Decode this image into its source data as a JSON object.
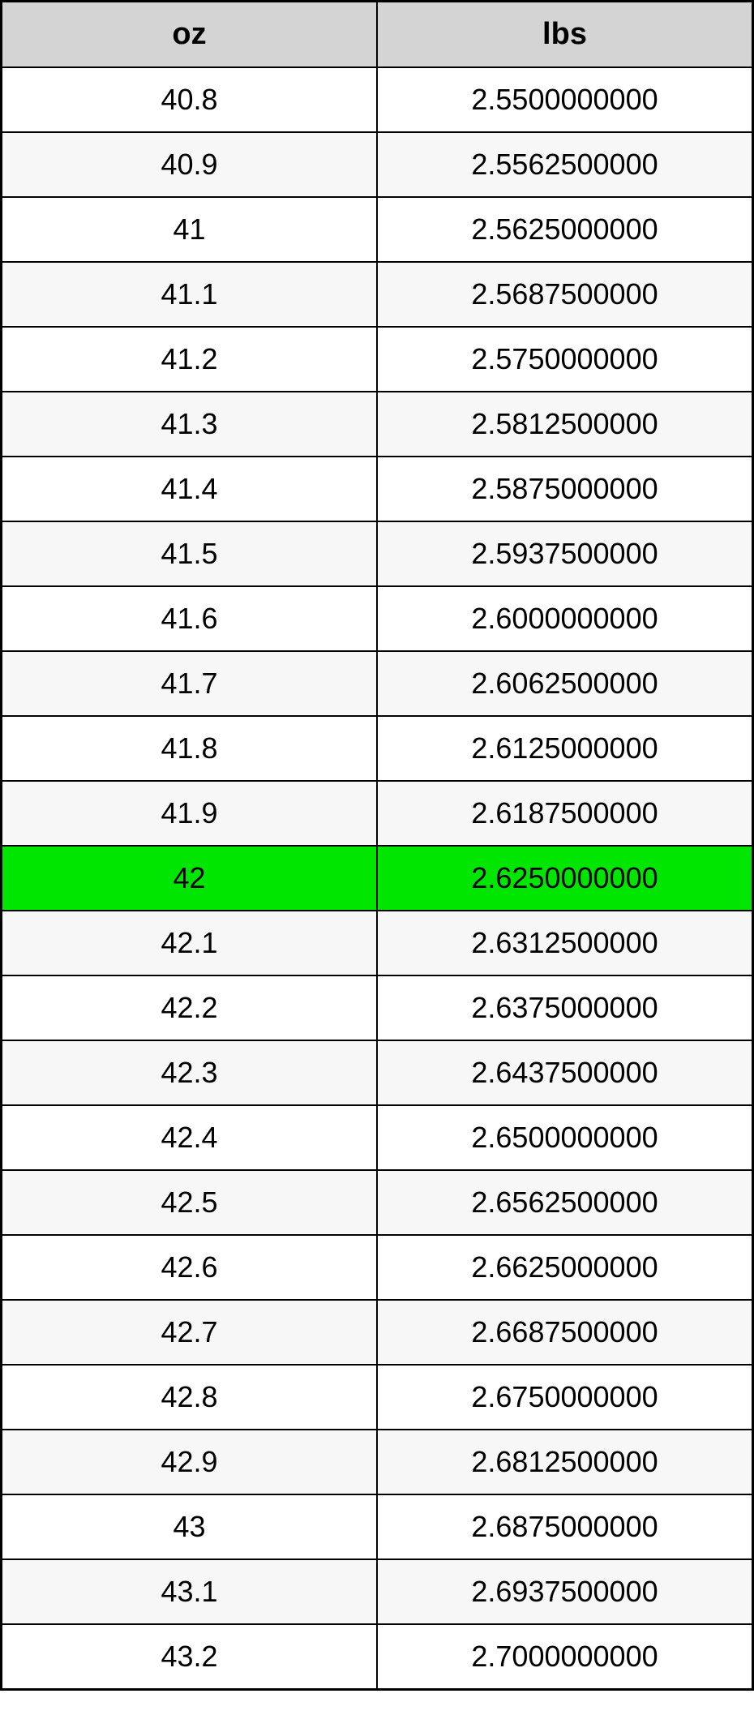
{
  "table": {
    "type": "table",
    "columns": [
      {
        "key": "oz",
        "label": "oz",
        "width_pct": 50,
        "align": "center"
      },
      {
        "key": "lbs",
        "label": "lbs",
        "width_pct": 50,
        "align": "center"
      }
    ],
    "header_bg": "#d4d4d4",
    "header_fontsize": 38,
    "header_fontweight": "bold",
    "cell_fontsize": 36,
    "border_color": "#000000",
    "outer_border_width": 3,
    "inner_border_width": 2,
    "row_bg_odd": "#ffffff",
    "row_bg_even": "#f7f7f7",
    "highlight_bg": "#00e600",
    "text_color": "#000000",
    "highlight_row_index": 12,
    "rows": [
      {
        "oz": "40.8",
        "lbs": "2.5500000000"
      },
      {
        "oz": "40.9",
        "lbs": "2.5562500000"
      },
      {
        "oz": "41",
        "lbs": "2.5625000000"
      },
      {
        "oz": "41.1",
        "lbs": "2.5687500000"
      },
      {
        "oz": "41.2",
        "lbs": "2.5750000000"
      },
      {
        "oz": "41.3",
        "lbs": "2.5812500000"
      },
      {
        "oz": "41.4",
        "lbs": "2.5875000000"
      },
      {
        "oz": "41.5",
        "lbs": "2.5937500000"
      },
      {
        "oz": "41.6",
        "lbs": "2.6000000000"
      },
      {
        "oz": "41.7",
        "lbs": "2.6062500000"
      },
      {
        "oz": "41.8",
        "lbs": "2.6125000000"
      },
      {
        "oz": "41.9",
        "lbs": "2.6187500000"
      },
      {
        "oz": "42",
        "lbs": "2.6250000000"
      },
      {
        "oz": "42.1",
        "lbs": "2.6312500000"
      },
      {
        "oz": "42.2",
        "lbs": "2.6375000000"
      },
      {
        "oz": "42.3",
        "lbs": "2.6437500000"
      },
      {
        "oz": "42.4",
        "lbs": "2.6500000000"
      },
      {
        "oz": "42.5",
        "lbs": "2.6562500000"
      },
      {
        "oz": "42.6",
        "lbs": "2.6625000000"
      },
      {
        "oz": "42.7",
        "lbs": "2.6687500000"
      },
      {
        "oz": "42.8",
        "lbs": "2.6750000000"
      },
      {
        "oz": "42.9",
        "lbs": "2.6812500000"
      },
      {
        "oz": "43",
        "lbs": "2.6875000000"
      },
      {
        "oz": "43.1",
        "lbs": "2.6937500000"
      },
      {
        "oz": "43.2",
        "lbs": "2.7000000000"
      }
    ]
  }
}
